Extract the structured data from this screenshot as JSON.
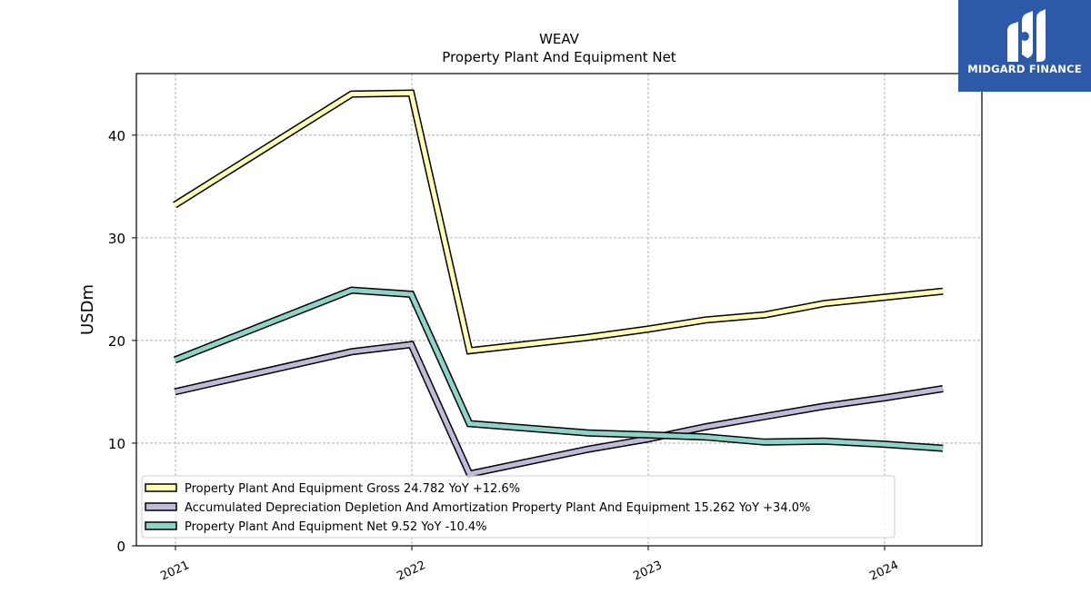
{
  "logo": {
    "text": "MIDGARD FINANCE"
  },
  "chart_data": {
    "type": "line",
    "title": "WEAV",
    "subtitle": "Property Plant And Equipment Net",
    "xlabel": "",
    "ylabel": "USDm",
    "x": [
      "2020-12-31",
      "2021-09-30",
      "2021-12-31",
      "2022-03-31",
      "2022-09-30",
      "2022-12-31",
      "2023-03-31",
      "2023-06-30",
      "2023-09-30",
      "2023-12-31",
      "2024-03-31"
    ],
    "xticks": [
      "2021",
      "2022",
      "2023",
      "2024"
    ],
    "ylim": [
      0,
      46
    ],
    "yticks": [
      0,
      10,
      20,
      30,
      40
    ],
    "grid": true,
    "legend_position": "lower-left",
    "series": [
      {
        "name": "Property Plant And Equipment Gross",
        "legend": "Property Plant And Equipment Gross  24.782 YoY +12.6%",
        "color": "#ffffb3",
        "values": [
          33.2,
          44.0,
          44.1,
          19.0,
          20.3,
          21.1,
          22.0,
          22.5,
          23.6,
          24.2,
          24.8
        ]
      },
      {
        "name": "Accumulated Depreciation Depletion And Amortization Property Plant And Equipment",
        "legend": "Accumulated Depreciation Depletion And Amortization Property Plant And Equipment  15.262 YoY +34.0%",
        "color": "#bebada",
        "values": [
          15.0,
          18.9,
          19.6,
          7.0,
          9.4,
          10.4,
          11.6,
          12.6,
          13.6,
          14.4,
          15.3
        ]
      },
      {
        "name": "Property Plant And Equipment Net",
        "legend": "Property Plant And Equipment Net  9.52 YoY -10.4%",
        "color": "#8dd3c7",
        "values": [
          18.1,
          24.9,
          24.5,
          11.9,
          11.0,
          10.8,
          10.6,
          10.1,
          10.2,
          9.9,
          9.5
        ]
      }
    ]
  }
}
